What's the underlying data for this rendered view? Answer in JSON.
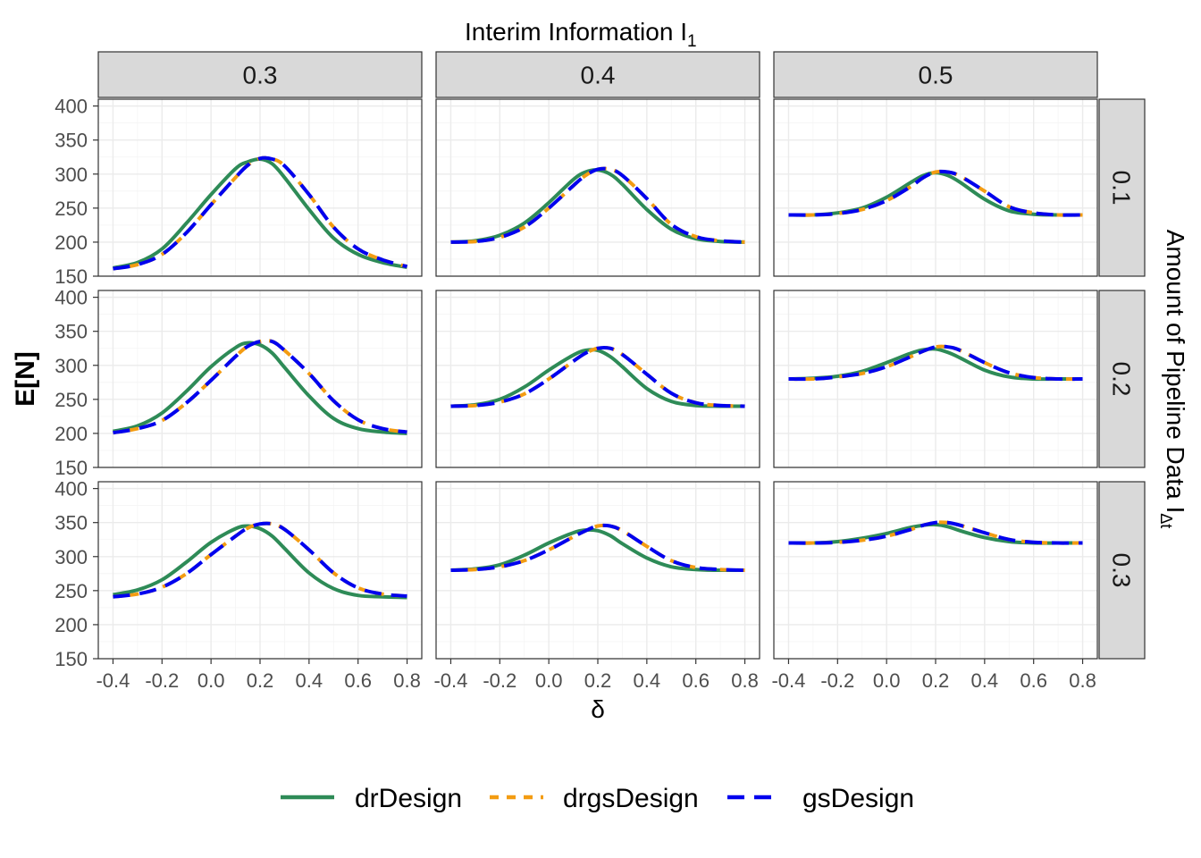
{
  "chart_data": {
    "type": "line",
    "title": "Interim Information I",
    "title_subscript": "1",
    "xlabel": "δ",
    "ylabel": "E[N]",
    "right_label": "Amount of Pipeline Data I",
    "right_label_subscript": "Δt",
    "col_facets": [
      "0.3",
      "0.4",
      "0.5"
    ],
    "row_facets": [
      "0.1",
      "0.2",
      "0.3"
    ],
    "x_ticks": [
      "-0.4",
      "-0.2",
      "0.0",
      "0.2",
      "0.4",
      "0.6",
      "0.8"
    ],
    "y_ticks": [
      "150",
      "200",
      "250",
      "300",
      "350",
      "400"
    ],
    "xlim": [
      -0.46,
      0.86
    ],
    "ylim": [
      150,
      410
    ],
    "grid": true,
    "legend_position": "bottom",
    "x": [
      -0.4,
      -0.3,
      -0.2,
      -0.1,
      0.0,
      0.1,
      0.15,
      0.2,
      0.25,
      0.3,
      0.4,
      0.5,
      0.6,
      0.7,
      0.8
    ],
    "series_styles": [
      {
        "name": "drDesign",
        "color": "#2e8b57",
        "dash": "solid"
      },
      {
        "name": "drgsDesign",
        "color": "#f39c12",
        "dash": "dotted"
      },
      {
        "name": "gsDesign",
        "color": "#0000ee",
        "dash": "dashed"
      }
    ],
    "panels": [
      {
        "col": "0.3",
        "row": "0.1",
        "series": [
          {
            "name": "drDesign",
            "values": [
              162,
              170,
              190,
              228,
              270,
              308,
              318,
              322,
              315,
              295,
              248,
              206,
              182,
              170,
              163
            ]
          },
          {
            "name": "drgsDesign",
            "values": [
              161,
              167,
              182,
              214,
              255,
              295,
              313,
              323,
              322,
              312,
              270,
              222,
              190,
              174,
              164
            ]
          },
          {
            "name": "gsDesign",
            "values": [
              161,
              167,
              182,
              214,
              255,
              295,
              313,
              323,
              322,
              312,
              270,
              222,
              190,
              174,
              164
            ]
          }
        ]
      },
      {
        "col": "0.4",
        "row": "0.1",
        "series": [
          {
            "name": "drDesign",
            "values": [
              200,
              202,
              210,
              228,
              258,
              292,
              303,
              306,
              300,
              285,
              248,
              219,
              205,
              201,
              200
            ]
          },
          {
            "name": "drgsDesign",
            "values": [
              200,
              201,
              207,
              222,
              250,
              283,
              298,
              307,
              307,
              298,
              264,
              226,
              208,
              202,
              200
            ]
          },
          {
            "name": "gsDesign",
            "values": [
              200,
              201,
              207,
              222,
              250,
              283,
              298,
              307,
              307,
              298,
              264,
              226,
              208,
              202,
              200
            ]
          }
        ]
      },
      {
        "col": "0.5",
        "row": "0.1",
        "series": [
          {
            "name": "drDesign",
            "values": [
              240,
              240,
              243,
              250,
              266,
              288,
              298,
              302,
              298,
              288,
              263,
              246,
              241,
              240,
              240
            ]
          },
          {
            "name": "drgsDesign",
            "values": [
              240,
              240,
              242,
              248,
              261,
              282,
              295,
              303,
              303,
              297,
              275,
              252,
              243,
              240,
              240
            ]
          },
          {
            "name": "gsDesign",
            "values": [
              240,
              240,
              242,
              248,
              261,
              282,
              295,
              303,
              303,
              297,
              275,
              252,
              243,
              240,
              240
            ]
          }
        ]
      },
      {
        "col": "0.3",
        "row": "0.2",
        "series": [
          {
            "name": "drDesign",
            "values": [
              203,
              211,
              230,
              262,
              298,
              326,
              333,
              330,
              318,
              297,
              255,
              222,
              207,
              202,
              200
            ]
          },
          {
            "name": "drgsDesign",
            "values": [
              201,
              207,
              219,
              245,
              278,
              313,
              328,
              335,
              335,
              322,
              288,
              248,
              220,
              207,
              202
            ]
          },
          {
            "name": "gsDesign",
            "values": [
              201,
              207,
              219,
              245,
              278,
              313,
              328,
              335,
              335,
              322,
              288,
              248,
              220,
              207,
              202
            ]
          }
        ]
      },
      {
        "col": "0.4",
        "row": "0.2",
        "series": [
          {
            "name": "drDesign",
            "values": [
              240,
              242,
              250,
              268,
              293,
              315,
              322,
              322,
              313,
              298,
              266,
              247,
              241,
              240,
              240
            ]
          },
          {
            "name": "drgsDesign",
            "values": [
              240,
              241,
              246,
              258,
              280,
              306,
              318,
              325,
              325,
              316,
              287,
              259,
              245,
              241,
              240
            ]
          },
          {
            "name": "gsDesign",
            "values": [
              240,
              241,
              246,
              258,
              280,
              306,
              318,
              325,
              325,
              316,
              287,
              259,
              245,
              241,
              240
            ]
          }
        ]
      },
      {
        "col": "0.5",
        "row": "0.2",
        "series": [
          {
            "name": "drDesign",
            "values": [
              280,
              281,
              284,
              291,
              304,
              318,
              323,
              324,
              319,
              311,
              293,
              283,
              280,
              280,
              280
            ]
          },
          {
            "name": "drgsDesign",
            "values": [
              280,
              280,
              283,
              288,
              298,
              313,
              321,
              327,
              327,
              322,
              304,
              289,
              282,
              280,
              280
            ]
          },
          {
            "name": "gsDesign",
            "values": [
              280,
              280,
              283,
              288,
              298,
              313,
              321,
              327,
              327,
              322,
              304,
              289,
              282,
              280,
              280
            ]
          }
        ]
      },
      {
        "col": "0.3",
        "row": "0.3",
        "series": [
          {
            "name": "drDesign",
            "values": [
              244,
              251,
              266,
              292,
              321,
              341,
              345,
              341,
              330,
              312,
              276,
              253,
              243,
              241,
              240
            ]
          },
          {
            "name": "drgsDesign",
            "values": [
              241,
              245,
              255,
              275,
              303,
              330,
              342,
              348,
              348,
              340,
              310,
              276,
              254,
              245,
              242
            ]
          },
          {
            "name": "gsDesign",
            "values": [
              241,
              245,
              255,
              275,
              303,
              330,
              342,
              348,
              348,
              340,
              310,
              276,
              254,
              245,
              242
            ]
          }
        ]
      },
      {
        "col": "0.4",
        "row": "0.3",
        "series": [
          {
            "name": "drDesign",
            "values": [
              280,
              282,
              288,
              302,
              320,
              335,
              339,
              338,
              331,
              319,
              298,
              285,
              281,
              280,
              280
            ]
          },
          {
            "name": "drgsDesign",
            "values": [
              280,
              281,
              285,
              294,
              310,
              329,
              338,
              345,
              345,
              338,
              315,
              294,
              284,
              281,
              280
            ]
          },
          {
            "name": "gsDesign",
            "values": [
              280,
              281,
              285,
              294,
              310,
              329,
              338,
              345,
              345,
              338,
              315,
              294,
              284,
              281,
              280
            ]
          }
        ]
      },
      {
        "col": "0.5",
        "row": "0.3",
        "series": [
          {
            "name": "drDesign",
            "values": [
              320,
              320,
              322,
              327,
              334,
              343,
              346,
              347,
              344,
              338,
              328,
              322,
              320,
              320,
              320
            ]
          },
          {
            "name": "drgsDesign",
            "values": [
              320,
              320,
              321,
              324,
              330,
              340,
              346,
              350,
              350,
              346,
              335,
              325,
              321,
              320,
              320
            ]
          },
          {
            "name": "gsDesign",
            "values": [
              320,
              320,
              321,
              324,
              330,
              340,
              346,
              350,
              350,
              346,
              335,
              325,
              321,
              320,
              320
            ]
          }
        ]
      }
    ]
  }
}
